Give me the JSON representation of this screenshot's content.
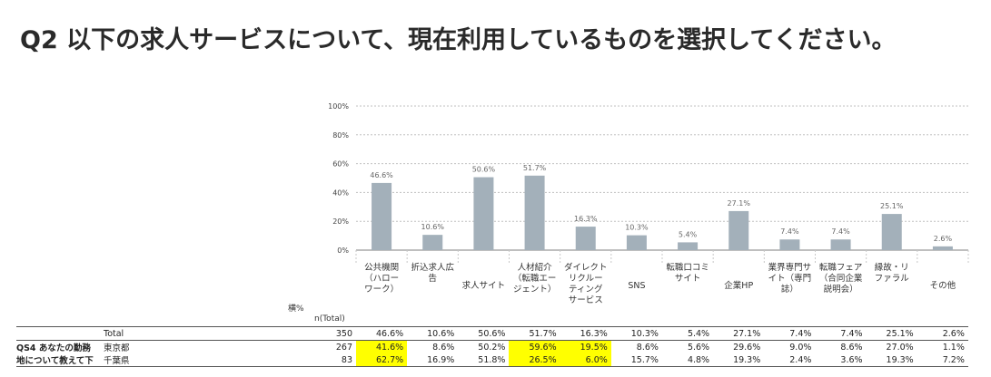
{
  "question_title": "Q2 以下の求人サービスについて、現在利用しているものを選択してください。",
  "corner_label": "横%",
  "n_label": "n(Total)",
  "chart_data": {
    "type": "bar",
    "yticks": [
      "0%",
      "20%",
      "40%",
      "60%",
      "80%",
      "100%"
    ],
    "ylim": [
      0,
      100
    ],
    "categories": [
      [
        "公共機関",
        "（ハロー",
        "ワーク）"
      ],
      [
        "折込求人広",
        "告"
      ],
      [
        "求人サイト"
      ],
      [
        "人材紹介",
        "（転職エー",
        "ジェント）"
      ],
      [
        "ダイレクト",
        "リクルー",
        "ティング",
        "サービス"
      ],
      [
        "SNS"
      ],
      [
        "転職口コミ",
        "サイト"
      ],
      [
        "企業HP"
      ],
      [
        "業界専門サ",
        "イト（専門",
        "誌）"
      ],
      [
        "転職フェア",
        "（合同企業",
        "説明会）"
      ],
      [
        "縁故・リ",
        "ファラル"
      ],
      [
        "その他"
      ]
    ],
    "values": [
      46.6,
      10.6,
      50.6,
      51.7,
      16.3,
      10.3,
      5.4,
      27.1,
      7.4,
      7.4,
      25.1,
      2.6
    ],
    "value_labels": [
      "46.6%",
      "10.6%",
      "50.6%",
      "51.7%",
      "16.3%",
      "10.3%",
      "5.4%",
      "27.1%",
      "7.4%",
      "7.4%",
      "25.1%",
      "2.6%"
    ],
    "bar_color": "#a3b0ba",
    "gridline_color": "#bfbfbf"
  },
  "table": {
    "group_label_1": "QS4 あなたの勤務",
    "group_label_2": "地について教えて下",
    "rows": [
      {
        "label": "Total",
        "n": "350",
        "cells": [
          "46.6%",
          "10.6%",
          "50.6%",
          "51.7%",
          "16.3%",
          "10.3%",
          "5.4%",
          "27.1%",
          "7.4%",
          "7.4%",
          "25.1%",
          "2.6%"
        ],
        "highlight": []
      },
      {
        "label": "東京都",
        "n": "267",
        "cells": [
          "41.6%",
          "8.6%",
          "50.2%",
          "59.6%",
          "19.5%",
          "8.6%",
          "5.6%",
          "29.6%",
          "9.0%",
          "8.6%",
          "27.0%",
          "1.1%"
        ],
        "highlight": [
          0,
          3,
          4
        ]
      },
      {
        "label": "千葉県",
        "n": "83",
        "cells": [
          "62.7%",
          "16.9%",
          "51.8%",
          "26.5%",
          "6.0%",
          "15.7%",
          "4.8%",
          "19.3%",
          "2.4%",
          "3.6%",
          "19.3%",
          "7.2%"
        ],
        "highlight": [
          0,
          3,
          4
        ]
      }
    ],
    "highlight_color": "#ffff00"
  }
}
